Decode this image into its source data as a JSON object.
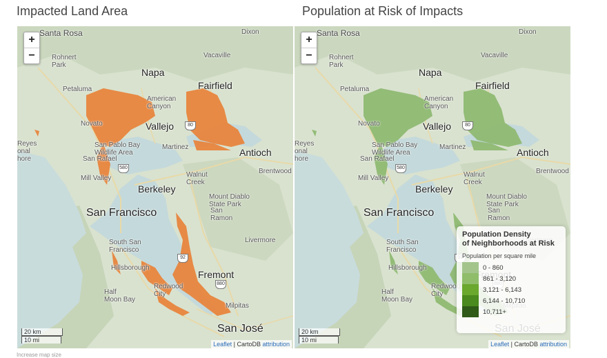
{
  "panels": [
    {
      "title": "Impacted Land Area",
      "overlay_color": "#e8823a"
    },
    {
      "title": "Population at Risk of Impacts",
      "overlay_color": "#8db870"
    }
  ],
  "zoom": {
    "in_label": "+",
    "out_label": "−"
  },
  "map_labels": {
    "santa_rosa": "Santa Rosa",
    "dixon": "Dixon",
    "rohnert_park": "Rohnert\nPark",
    "vacaville": "Vacaville",
    "napa": "Napa",
    "fairfield": "Fairfield",
    "petaluma": "Petaluma",
    "american_canyon": "American\nCanyon",
    "novato": "Novato",
    "vallejo": "Vallejo",
    "san_pablo_bay": "San Pablo Bay\nWildlife Area",
    "martinez": "Martinez",
    "antioch": "Antioch",
    "point_reyes": "Reyes\nonal\nhore",
    "san_rafael": "San Rafael",
    "brentwood": "Brentwood",
    "mill_valley": "Mill Valley",
    "walnut_creek": "Walnut\nCreek",
    "berkeley": "Berkeley",
    "mount_diablo": "Mount Diablo\nState Park",
    "san_francisco": "San Francisco",
    "san_ramon": "San\nRamon",
    "livermore": "Livermore",
    "south_sf": "South San\nFrancisco",
    "hillsborough": "Hillsborough",
    "fremont": "Fremont",
    "half_moon_bay": "Half\nMoon Bay",
    "redwood_city": "Redwood\nCity",
    "milpitas": "Milpitas",
    "san_jose": "San José"
  },
  "shields": {
    "i580": "580",
    "i80": "80",
    "i92": "92",
    "i880": "880"
  },
  "scale": {
    "km": "20 km",
    "mi": "10 mi"
  },
  "attribution": {
    "leaflet": "Leaflet",
    "sep": " | CartoDB ",
    "link": "attribution"
  },
  "legend": {
    "title": "Population Density\nof Neighborhoods at Risk",
    "subtitle": "Population per square mile",
    "items": [
      {
        "label": "0 - 860",
        "color": "#a3c58c"
      },
      {
        "label": "861 - 3,120",
        "color": "#8fbd6a"
      },
      {
        "label": "3,121 - 6,143",
        "color": "#6aa82e"
      },
      {
        "label": "6,144 - 10,710",
        "color": "#4a8a1e"
      },
      {
        "label": "10,711+",
        "color": "#2f5a18"
      }
    ]
  },
  "footnote": "Increase map size"
}
